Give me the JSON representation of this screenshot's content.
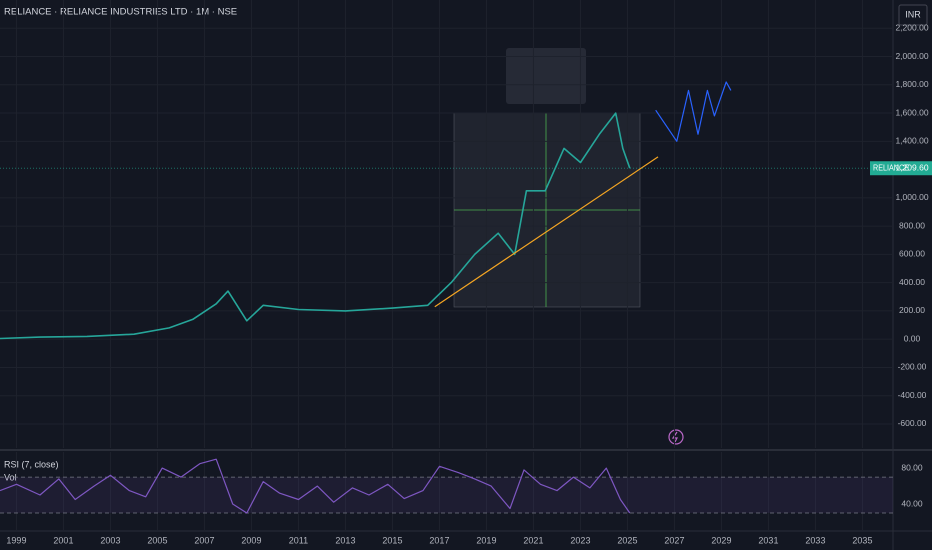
{
  "chart_data": [
    {
      "type": "line",
      "title": "RELIANCE · RELIANCE INDUSTRIES LTD · 1M · NSE",
      "currency": "INR",
      "symbol": "RELIANCE",
      "last_price": {
        "value": 1209.6,
        "label": "1,209.60"
      },
      "last_price_color": "#22ab94",
      "xlim": [
        1998.3,
        2036.3
      ],
      "xticks": [
        1999,
        2001,
        2003,
        2005,
        2007,
        2009,
        2011,
        2013,
        2015,
        2017,
        2019,
        2021,
        2023,
        2025,
        2027,
        2029,
        2031,
        2033,
        2035
      ],
      "ylim": [
        -770,
        2400
      ],
      "yticks": [
        {
          "value": 2200,
          "label": "2,200.00"
        },
        {
          "value": 2000,
          "label": "2,000.00"
        },
        {
          "value": 1800,
          "label": "1,800.00"
        },
        {
          "value": 1600,
          "label": "1,600.00"
        },
        {
          "value": 1400,
          "label": "1,400.00"
        },
        {
          "value": 1000,
          "label": "1,000.00"
        },
        {
          "value": 800,
          "label": "800.00"
        },
        {
          "value": 600,
          "label": "600.00"
        },
        {
          "value": 400,
          "label": "400.00"
        },
        {
          "value": 200,
          "label": "200.00"
        },
        {
          "value": 0,
          "label": "0.00"
        },
        {
          "value": -200,
          "label": "-200.00"
        },
        {
          "value": -400,
          "label": "-400.00"
        },
        {
          "value": -600,
          "label": "-600.00"
        }
      ],
      "grid": true,
      "series": [
        {
          "color": "#26a69a",
          "x": [
            1998.3,
            2000,
            2002,
            2004,
            2005.5,
            2006.5,
            2007.5,
            2008.0,
            2008.8,
            2009.5,
            2011,
            2013,
            2015,
            2016.5,
            2017.5,
            2018.5,
            2019.5,
            2020.2,
            2020.7,
            2021.5,
            2022.3,
            2023.0,
            2023.8,
            2024.5,
            2024.8,
            2025.1
          ],
          "values": [
            5,
            15,
            20,
            35,
            80,
            140,
            250,
            340,
            130,
            240,
            210,
            200,
            220,
            240,
            400,
            600,
            750,
            600,
            1050,
            1050,
            1350,
            1250,
            1450,
            1600,
            1350,
            1210
          ]
        },
        {
          "color": "#f5a623",
          "x": [
            2016.8,
            2026.3
          ],
          "values": [
            230,
            1290
          ]
        },
        {
          "color": "#2962ff",
          "x": [
            2026.2,
            2027.1,
            2027.6,
            2028.0,
            2028.4,
            2028.7,
            2029.2,
            2029.4
          ],
          "values": [
            1620,
            1400,
            1760,
            1450,
            1760,
            1580,
            1820,
            1760
          ]
        }
      ]
    },
    {
      "type": "line",
      "label": "RSI (7, close)",
      "volume_label": "Vol",
      "ylim": [
        11,
        98
      ],
      "yticks": [
        {
          "value": 80,
          "label": "80.00"
        },
        {
          "value": 40,
          "label": "40.00"
        }
      ],
      "bands": [
        70,
        30
      ],
      "series": [
        {
          "color": "#7e57c2",
          "x": [
            1998.3,
            1999,
            2000,
            2000.8,
            2001.5,
            2002.3,
            2003,
            2003.8,
            2004.5,
            2005.2,
            2006,
            2006.8,
            2007.5,
            2008.2,
            2008.8,
            2009.5,
            2010.2,
            2011,
            2011.8,
            2012.5,
            2013.3,
            2014,
            2014.8,
            2015.5,
            2016.3,
            2017,
            2017.8,
            2018.5,
            2019.2,
            2020,
            2020.6,
            2021.3,
            2022,
            2022.7,
            2023.4,
            2024.1,
            2024.7,
            2025.1
          ],
          "values": [
            55,
            62,
            50,
            68,
            45,
            60,
            72,
            55,
            48,
            80,
            70,
            85,
            90,
            40,
            30,
            65,
            52,
            45,
            60,
            42,
            58,
            50,
            62,
            46,
            55,
            82,
            75,
            68,
            60,
            35,
            78,
            62,
            55,
            70,
            58,
            80,
            45,
            30
          ]
        }
      ]
    }
  ]
}
